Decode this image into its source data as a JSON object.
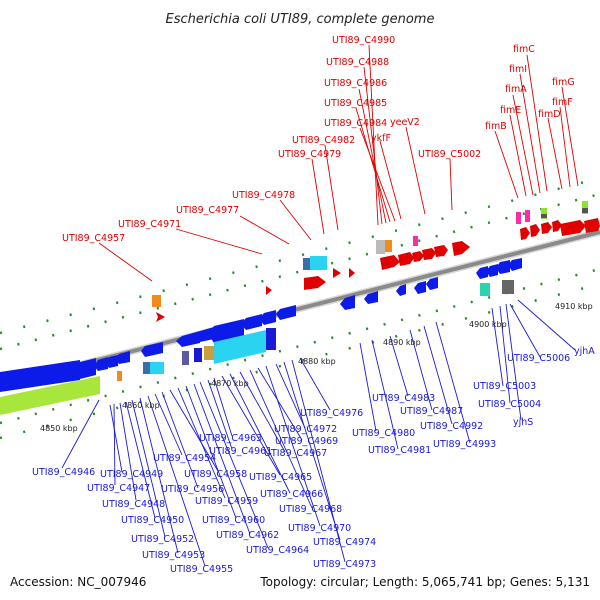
{
  "title": "Escherichia coli UTI89, complete genome",
  "footer": {
    "accession": "Accession: NC_007946",
    "summary": "Topology: circular; Length: 5,065,741 bp; Genes: 5,131"
  },
  "colors": {
    "forward_label": "#e00000",
    "reverse_label": "#1a1ad6",
    "axis": "#888888",
    "tick_dots": "#2a8a2a"
  },
  "axis_ticks": [
    {
      "label": "4850 kbp"
    },
    {
      "label": "4860 kbp"
    },
    {
      "label": "4870 kbp"
    },
    {
      "label": "4880 kbp"
    },
    {
      "label": "4890 kbp"
    },
    {
      "label": "4900 kbp"
    },
    {
      "label": "4910 kbp"
    }
  ],
  "forward_labels": [
    "UTI89_C4990",
    "UTI89_C4988",
    "UTI89_C4986",
    "UTI89_C4985",
    "UTI89_C4984",
    "ykfF",
    "yeeV2",
    "UTI89_C4982",
    "UTI89_C4979",
    "UTI89_C5002",
    "UTI89_C4978",
    "UTI89_C4977",
    "UTI89_C4971",
    "UTI89_C4957",
    "fimC",
    "fimI",
    "fimA",
    "fimG",
    "fimF",
    "fimE",
    "fimD",
    "fimB"
  ],
  "reverse_labels": [
    "UTI89_C4946",
    "UTI89_C4949",
    "UTI89_C4947",
    "UTI89_C4948",
    "UTI89_C4950",
    "UTI89_C4952",
    "UTI89_C4953",
    "UTI89_C4955",
    "UTI89_C4954",
    "UTI89_C4956",
    "UTI89_C4958",
    "UTI89_C4959",
    "UTI89_C4960",
    "UTI89_C4962",
    "UTI89_C4964",
    "UTI89_C4961",
    "UTI89_C4963",
    "UTI89_C4965",
    "UTI89_C4966",
    "UTI89_C4967",
    "UTI89_C4968",
    "UTI89_C4969",
    "UTI89_C4970",
    "UTI89_C4972",
    "UTI89_C4974",
    "UTI89_C4973",
    "UTI89_C4976",
    "UTI89_C4980",
    "UTI89_C4981",
    "UTI89_C4983",
    "UTI89_C4987",
    "UTI89_C4992",
    "UTI89_C4993",
    "UTI89_C5003",
    "UTI89_C5004",
    "UTI89_C5006",
    "yjhS",
    "yjhA"
  ]
}
